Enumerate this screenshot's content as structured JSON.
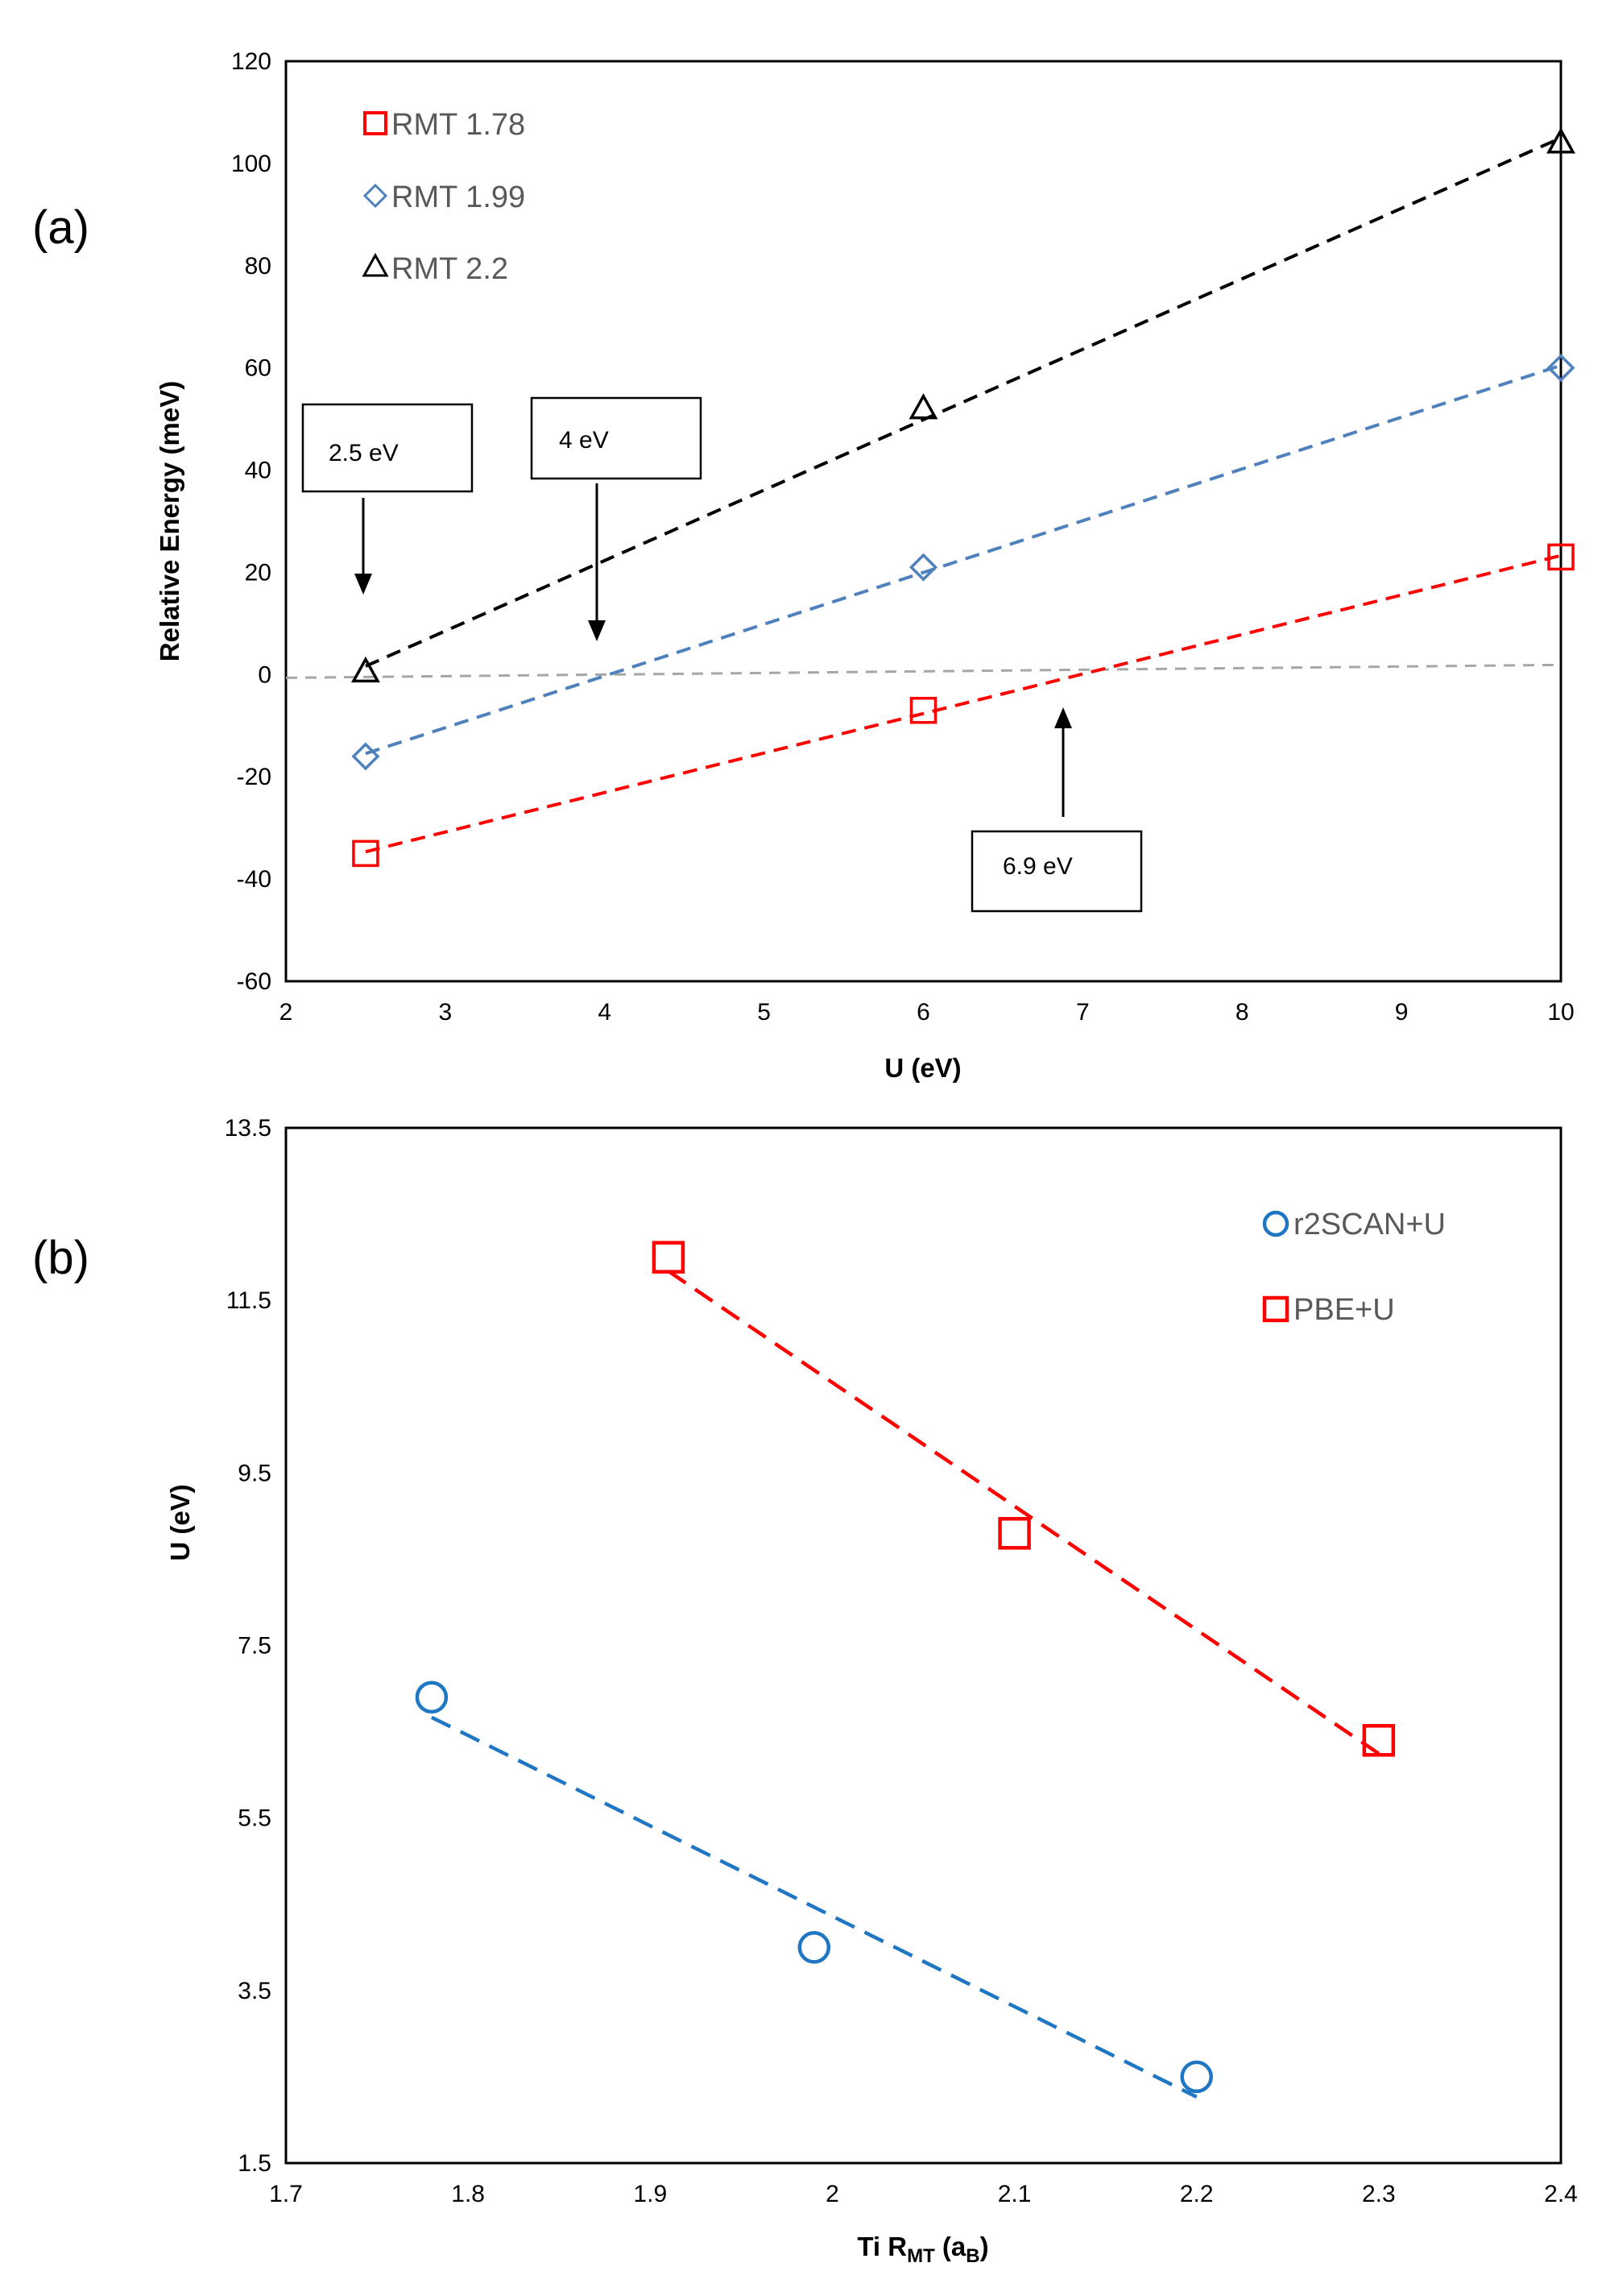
{
  "panels": {
    "a": {
      "label": "(a)",
      "chart_data": {
        "type": "scatter",
        "xlabel": "U (eV)",
        "ylabel": "Relative Energy (meV)",
        "xlim": [
          2,
          10
        ],
        "ylim": [
          -60,
          120
        ],
        "xticks": [
          2,
          3,
          4,
          5,
          6,
          7,
          8,
          9,
          10
        ],
        "yticks": [
          -60,
          -40,
          -20,
          0,
          20,
          40,
          60,
          80,
          100,
          120
        ],
        "grid": false,
        "legend_position": "top-left",
        "zero_line": true,
        "series": [
          {
            "name": "RMT 1.78",
            "marker": "square",
            "color": "#ff0000",
            "x": [
              2.5,
              6,
              10
            ],
            "y": [
              -35,
              -7,
              23
            ]
          },
          {
            "name": "RMT 1.99",
            "marker": "diamond",
            "color": "#4f81bd",
            "x": [
              2.5,
              6,
              10
            ],
            "y": [
              -16,
              21,
              60
            ]
          },
          {
            "name": "RMT 2.2",
            "marker": "triangle",
            "color": "#000000",
            "x": [
              2.5,
              6,
              10
            ],
            "y": [
              0.5,
              52,
              104
            ]
          }
        ],
        "annotations": [
          {
            "text": "2.5 eV",
            "x": 2.5,
            "y": 0
          },
          {
            "text": "4 eV",
            "x": 3.95,
            "y": 0
          },
          {
            "text": "6.9 eV",
            "x": 6.9,
            "y": 0
          }
        ]
      }
    },
    "b": {
      "label": "(b)",
      "chart_data": {
        "type": "scatter",
        "xlabel_main": "Ti R",
        "xlabel_sub": "MT",
        "xlabel_open": " (a",
        "xlabel_unit_sub": "B",
        "xlabel_close": ")",
        "ylabel": "U (eV)",
        "xlim": [
          1.7,
          2.4
        ],
        "ylim": [
          1.5,
          13.5
        ],
        "xticks": [
          1.7,
          1.8,
          1.9,
          2,
          2.1,
          2.2,
          2.3,
          2.4
        ],
        "yticks": [
          1.5,
          3.5,
          5.5,
          7.5,
          9.5,
          11.5,
          13.5
        ],
        "grid": false,
        "legend_position": "top-right",
        "series": [
          {
            "name": "r2SCAN+U",
            "marker": "circle",
            "color": "#1f77c4",
            "x": [
              1.78,
              1.99,
              2.2
            ],
            "y": [
              6.9,
              4.0,
              2.5
            ]
          },
          {
            "name": "PBE+U",
            "marker": "square",
            "color": "#ff0000",
            "x": [
              1.91,
              2.1,
              2.3
            ],
            "y": [
              12.0,
              8.8,
              6.4
            ]
          }
        ]
      }
    }
  }
}
